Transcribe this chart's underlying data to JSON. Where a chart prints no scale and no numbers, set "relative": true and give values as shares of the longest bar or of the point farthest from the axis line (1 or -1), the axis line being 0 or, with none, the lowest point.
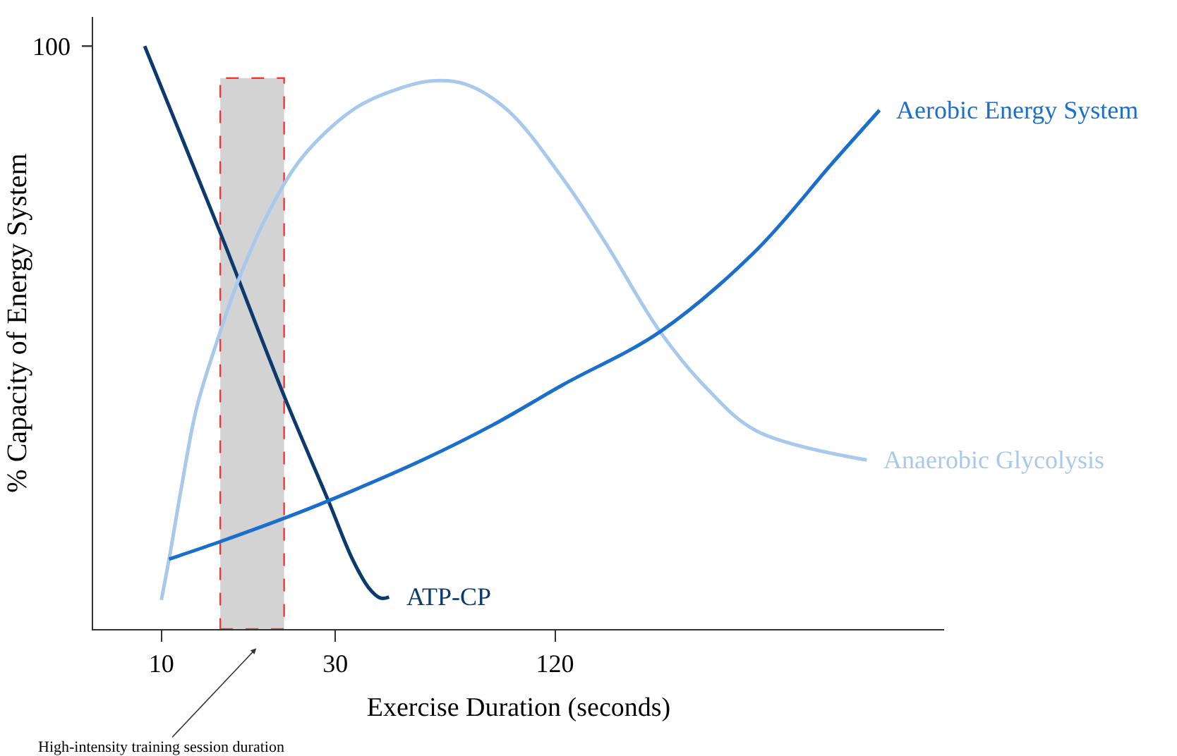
{
  "chart_data": {
    "type": "line",
    "relative": true,
    "xlabel": "Exercise Duration (seconds)",
    "ylabel": "% Capacity of Energy System",
    "log": "x",
    "xlim": [
      6.5,
      1400
    ],
    "xticks": [
      10,
      30,
      120
    ],
    "legend": false,
    "grid": false,
    "marker": "none",
    "line_style": "solid",
    "series": [
      {
        "name": "ATP-CP",
        "color": "#0d3a6e",
        "x": [
          9,
          14.5,
          21.7,
          28.7,
          33.4,
          37.1,
          39.9,
          42.1
        ],
        "values": [
          1,
          0.68,
          0.4,
          0.22,
          0.12,
          0.07,
          0.053,
          0.055
        ]
      },
      {
        "name": "Anaerobic Glycolysis",
        "color": "#a9c9ec",
        "x": [
          10,
          10.5,
          11.4,
          12.5,
          14.5,
          16.3,
          19.5,
          24.4,
          33.4,
          41.7,
          54.5,
          68,
          89,
          127,
          166,
          233,
          316,
          428,
          859
        ],
        "values": [
          0.05,
          0.12,
          0.25,
          0.38,
          0.51,
          0.6,
          0.71,
          0.81,
          0.89,
          0.92,
          0.94,
          0.935,
          0.89,
          0.77,
          0.66,
          0.51,
          0.41,
          0.34,
          0.29
        ]
      },
      {
        "name": "Aerobic Energy System",
        "color": "#1a6fcc",
        "x": [
          10.5,
          14.5,
          21.7,
          28.7,
          52,
          81,
          127,
          233,
          428,
          693,
          931
        ],
        "values": [
          0.12,
          0.15,
          0.19,
          0.22,
          0.29,
          0.35,
          0.42,
          0.51,
          0.65,
          0.8,
          0.89
        ]
      }
    ],
    "bands": [
      {
        "axis": "x",
        "from": 14.5,
        "to": 21.7,
        "color": "#d3d3d3"
      }
    ],
    "annotations": [
      "100",
      "High-intensity training session duration"
    ]
  }
}
